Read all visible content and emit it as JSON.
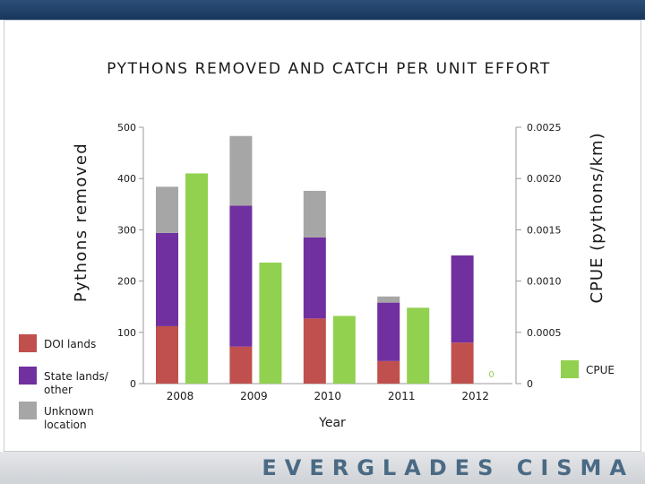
{
  "brand": "EVERGLADES CISMA",
  "chart_data": {
    "type": "bar",
    "title": "PYTHONS REMOVED AND CATCH PER UNIT EFFORT",
    "xlabel": "Year",
    "ylabel": "Pythons removed",
    "y2label": "CPUE (pythons/km)",
    "categories": [
      "2008",
      "2009",
      "2010",
      "2011",
      "2012"
    ],
    "ylim": [
      0,
      500
    ],
    "yticks": [
      "0",
      "100",
      "200",
      "300",
      "400",
      "500"
    ],
    "y2lim": [
      0,
      0.0025
    ],
    "y2ticks": [
      "0",
      "0.0005",
      "0.0010",
      "0.0015",
      "0.0020",
      "0.0025"
    ],
    "series": [
      {
        "name": "DOI lands",
        "color": "#c0504d",
        "values": [
          112,
          72,
          127,
          44,
          80
        ]
      },
      {
        "name": "State lands/ other",
        "color": "#7030a0",
        "values": [
          182,
          275,
          158,
          114,
          170
        ]
      },
      {
        "name": "Unknown location",
        "color": "#a6a6a6",
        "values": [
          90,
          136,
          91,
          12,
          0
        ]
      }
    ],
    "cpue": {
      "name": "CPUE",
      "color": "#92d050",
      "values": [
        0.00205,
        0.00118,
        0.00066,
        0.00074,
        0
      ]
    },
    "annotations": [
      {
        "category": "2012",
        "text": "0",
        "color": "#92d050"
      }
    ],
    "legend_left": [
      "DOI lands",
      "State lands/ other",
      "Unknown location"
    ],
    "legend_right": "CPUE"
  }
}
